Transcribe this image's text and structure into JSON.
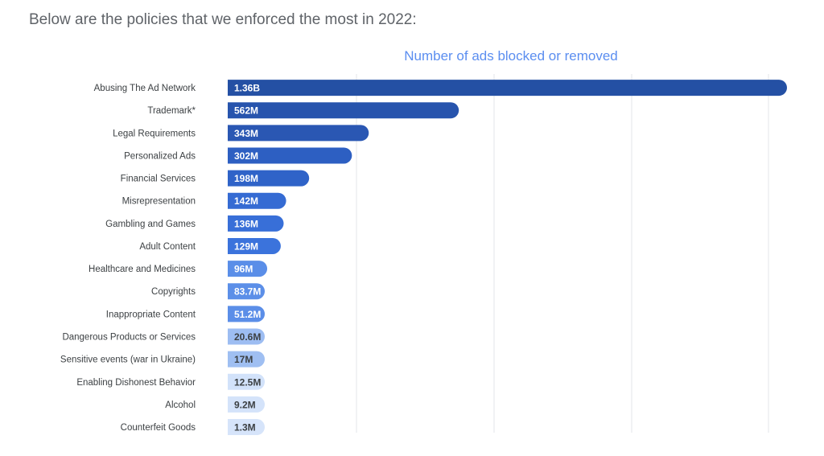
{
  "heading": "Below are the policies that we enforced the most in 2022:",
  "chart_data": {
    "type": "bar",
    "orientation": "horizontal",
    "title": "Number of ads blocked or removed",
    "xlabel": "",
    "ylabel": "",
    "grid": true,
    "unit": "ads",
    "categories": [
      "Abusing The Ad Network",
      "Trademark*",
      "Legal Requirements",
      "Personalized Ads",
      "Financial Services",
      "Misrepresentation",
      "Gambling and Games",
      "Adult Content",
      "Healthcare and Medicines",
      "Copyrights",
      "Inappropriate Content",
      "Dangerous Products or Services",
      "Sensitive events (war in Ukraine)",
      "Enabling Dishonest Behavior",
      "Alcohol",
      "Counterfeit Goods"
    ],
    "values": [
      1360000000,
      562000000,
      343000000,
      302000000,
      198000000,
      142000000,
      136000000,
      129000000,
      96000000,
      83700000,
      51200000,
      20600000,
      17000000,
      12500000,
      9200000,
      1300000
    ],
    "labels": [
      "1.36B",
      "562M",
      "343M",
      "302M",
      "198M",
      "142M",
      "136M",
      "129M",
      "96M",
      "83.7M",
      "51.2M",
      "20.6M",
      "17M",
      "12.5M",
      "9.2M",
      "1.3M"
    ],
    "colors": [
      "#2450a4",
      "#2754ad",
      "#2a57b3",
      "#2d5fc2",
      "#2f63c8",
      "#356bd3",
      "#386fd8",
      "#3b73dc",
      "#5a8ee8",
      "#5c8fe8",
      "#5b8ee8",
      "#9dbdf2",
      "#9fbff2",
      "#d2e2fa",
      "#d4e3fa",
      "#d6e4fa"
    ],
    "label_colors": [
      "#ffffff",
      "#ffffff",
      "#ffffff",
      "#ffffff",
      "#ffffff",
      "#ffffff",
      "#ffffff",
      "#ffffff",
      "#ffffff",
      "#ffffff",
      "#ffffff",
      "#3c4043",
      "#3c4043",
      "#3c4043",
      "#3c4043",
      "#3c4043"
    ]
  }
}
